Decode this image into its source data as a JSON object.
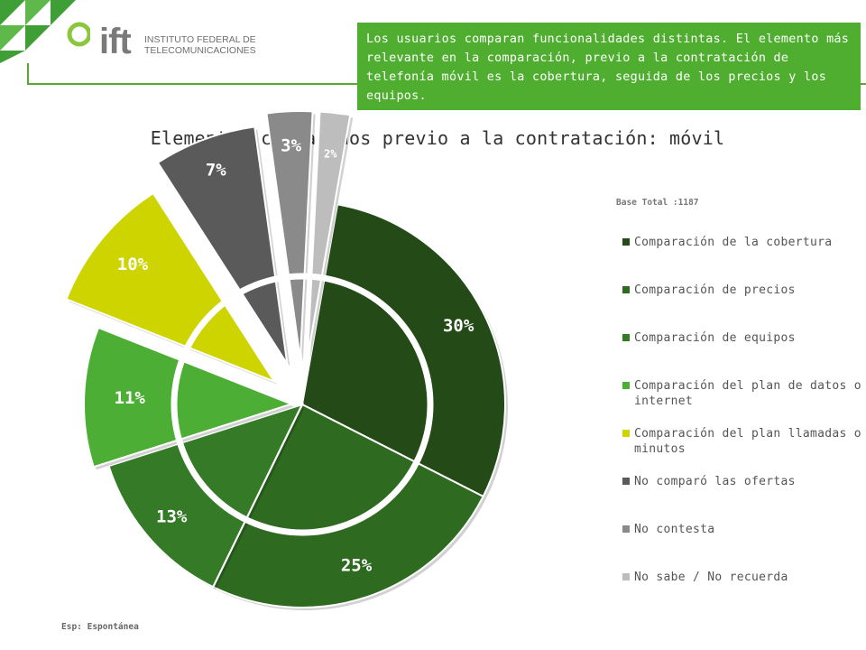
{
  "header": {
    "brand": "ift",
    "institution_name": "INSTITUTO FEDERAL DE\nTELECOMUNICACIONES",
    "accent_color": "#58a832"
  },
  "info_box": {
    "text": "Los usuarios comparan funcionalidades distintas. El elemento más relevante en la comparación, previo a la contratación de telefonía móvil es la cobertura, seguida de los precios y los equipos.",
    "background": "#4fae2f"
  },
  "base_note": "Base Total :1187",
  "footnote": "Esp: Espontánea",
  "chart_data": {
    "type": "pie",
    "title": "Elementos comparados previo a la contratación: móvil",
    "slices": [
      {
        "label": "Comparación de la cobertura",
        "value": 30,
        "display": "30%",
        "color": "#234a17"
      },
      {
        "label": "Comparación de precios",
        "value": 25,
        "display": "25%",
        "color": "#2e6b20"
      },
      {
        "label": "Comparación de equipos",
        "value": 13,
        "display": "13%",
        "color": "#357a27"
      },
      {
        "label": "Comparación del plan de datos o internet",
        "value": 11,
        "display": "11%",
        "color": "#4cae35"
      },
      {
        "label": "Comparación del plan llamadas o minutos",
        "value": 10,
        "display": "10%",
        "color": "#cdd400"
      },
      {
        "label": "No comparó las ofertas",
        "value": 7,
        "display": "7%",
        "color": "#5a5a5a"
      },
      {
        "label": "No contesta",
        "value": 3,
        "display": "3%",
        "color": "#8a8a8a"
      },
      {
        "label": "No sabe / No recuerda",
        "value": 2,
        "display": "2%",
        "color": "#bdbdbd"
      }
    ],
    "legend_position": "right"
  }
}
